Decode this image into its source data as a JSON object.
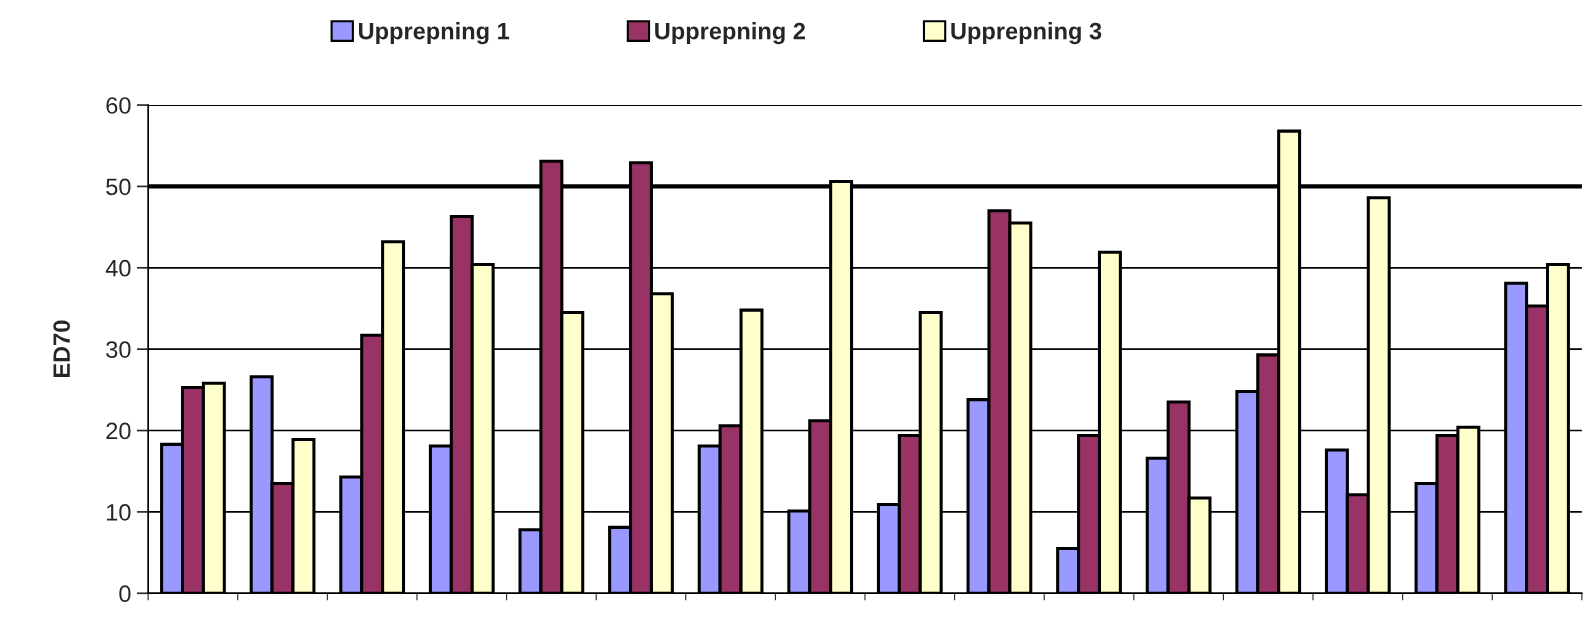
{
  "chart_data": {
    "type": "bar",
    "ylabel": "ED70",
    "categories": [
      null,
      null,
      null,
      null,
      null,
      null,
      null,
      null,
      null,
      null,
      null,
      null,
      null,
      null,
      null,
      null
    ],
    "series": [
      {
        "name": "Upprepning 1",
        "color": "#9999ff",
        "values": [
          18.3,
          26.6,
          14.3,
          18.1,
          7.8,
          8.1,
          18.1,
          10.1,
          10.9,
          23.8,
          5.5,
          16.6,
          24.8,
          17.6,
          13.5,
          38.1
        ]
      },
      {
        "name": "Upprepning 2",
        "color": "#993366",
        "values": [
          25.3,
          13.5,
          31.7,
          46.3,
          53.1,
          52.9,
          20.6,
          21.2,
          19.4,
          47.0,
          19.4,
          23.5,
          29.3,
          12.1,
          19.4,
          35.3
        ]
      },
      {
        "name": "Upprepning 3",
        "color": "#ffffcc",
        "values": [
          25.8,
          18.9,
          43.2,
          40.4,
          34.5,
          36.8,
          34.8,
          50.6,
          34.5,
          45.5,
          41.9,
          11.7,
          56.8,
          48.6,
          20.4,
          40.4
        ]
      }
    ],
    "ylim": [
      0,
      60
    ],
    "yticks": [
      0,
      10,
      20,
      30,
      40,
      50,
      60
    ],
    "grid": "y",
    "legend": "top",
    "ref_lines": [
      {
        "axis": "y",
        "value": 50,
        "color": "#000000",
        "line_style": "solid"
      }
    ]
  }
}
